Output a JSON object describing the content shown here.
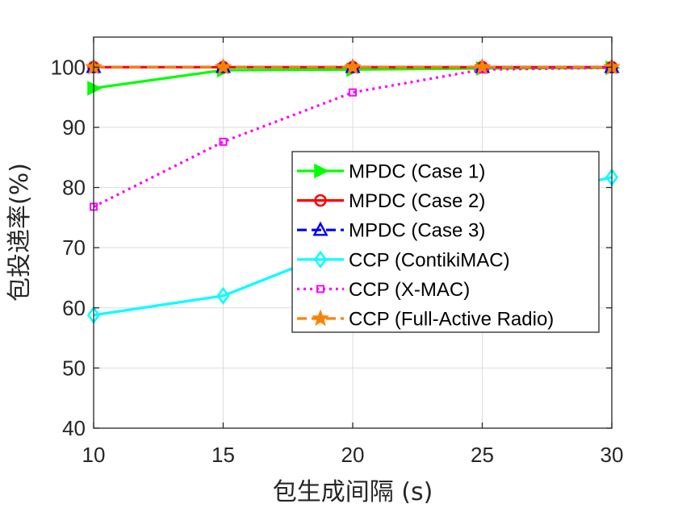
{
  "chart_data": {
    "type": "line",
    "title": "",
    "xlabel": "包生成间隔 (s)",
    "ylabel": "包投递率(%)",
    "x": [
      10,
      15,
      20,
      25,
      30
    ],
    "xlim": [
      10,
      30
    ],
    "ylim": [
      40,
      105
    ],
    "xticks": [
      10,
      15,
      20,
      25,
      30
    ],
    "yticks": [
      40,
      50,
      60,
      70,
      80,
      90,
      100
    ],
    "grid": true,
    "legend_position": "center-right",
    "series": [
      {
        "name": "MPDC (Case 1)",
        "values": [
          96.5,
          99.5,
          99.6,
          99.8,
          99.9
        ],
        "color": "#00ff00",
        "line_style": "solid",
        "marker": "triangle-right"
      },
      {
        "name": "MPDC (Case 2)",
        "values": [
          100,
          100,
          100,
          100,
          100
        ],
        "color": "#ff0000",
        "line_style": "solid",
        "marker": "circle"
      },
      {
        "name": "MPDC (Case 3)",
        "values": [
          100,
          100,
          100,
          100,
          100
        ],
        "color": "#0000ff",
        "line_style": "dashed",
        "marker": "triangle-up"
      },
      {
        "name": "CCP (ContikiMAC)",
        "values": [
          58.8,
          62,
          70.5,
          77,
          81.7
        ],
        "color": "#00ffff",
        "line_style": "solid",
        "marker": "diamond"
      },
      {
        "name": "CCP (X-MAC)",
        "values": [
          76.8,
          87.6,
          95.8,
          99.6,
          99.9
        ],
        "color": "#ff00ff",
        "line_style": "dotted",
        "marker": "square"
      },
      {
        "name": "CCP (Full-Active Radio)",
        "values": [
          100,
          100,
          100,
          100,
          100
        ],
        "color": "#ff8000",
        "line_style": "dashed",
        "marker": "star"
      }
    ]
  }
}
